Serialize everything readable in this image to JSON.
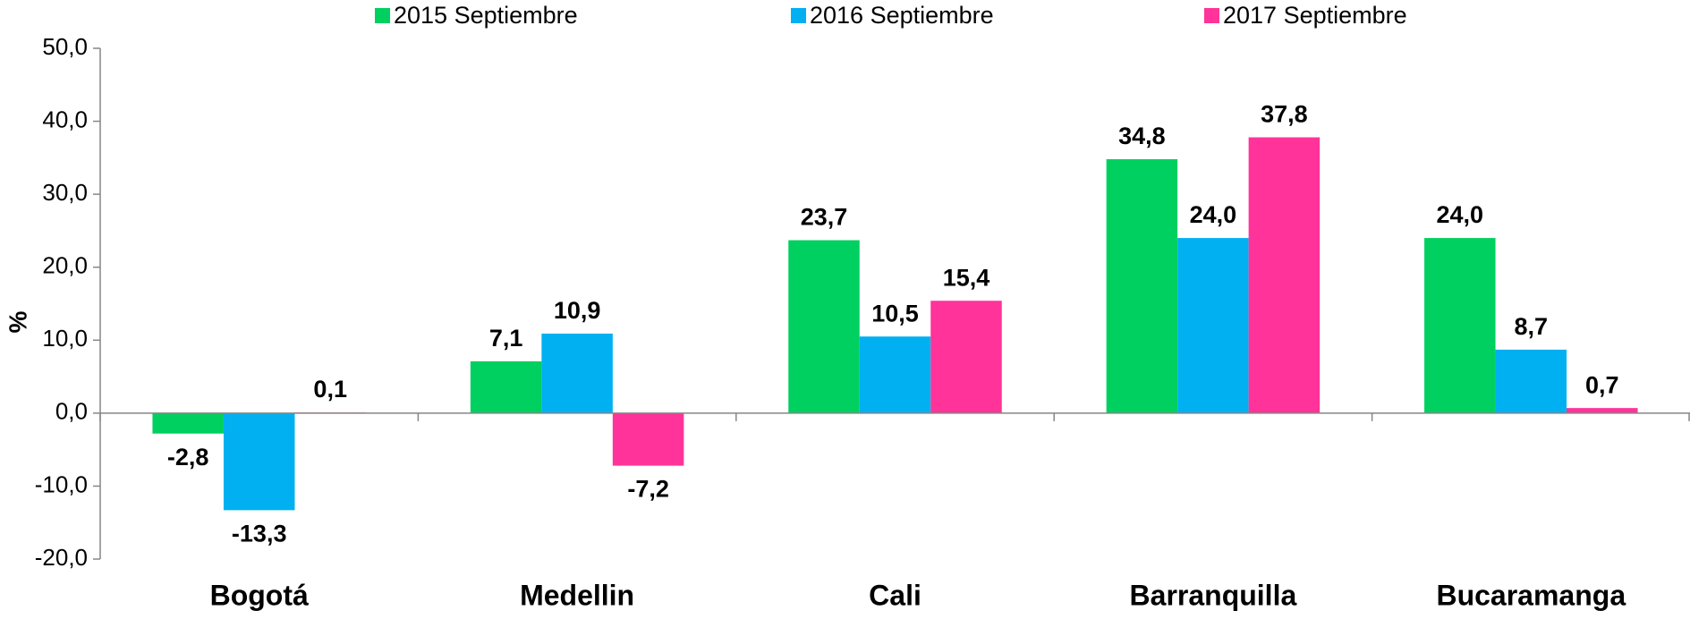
{
  "chart_data": {
    "type": "bar",
    "y_label": "%",
    "categories": [
      "Bogotá",
      "Medellin",
      "Cali",
      "Barranquilla",
      "Bucaramanga"
    ],
    "series": [
      {
        "name": "2015 Septiembre",
        "color": "#00d060",
        "values": [
          -2.8,
          7.1,
          23.7,
          34.8,
          24.0
        ],
        "value_labels": [
          "-2,8",
          "7,1",
          "23,7",
          "34,8",
          "24,0"
        ]
      },
      {
        "name": "2016 Septiembre",
        "color": "#00b0f0",
        "values": [
          -13.3,
          10.9,
          10.5,
          24.0,
          8.7
        ],
        "value_labels": [
          "-13,3",
          "10,9",
          "10,5",
          "24,0",
          "8,7"
        ]
      },
      {
        "name": "2017 Septiembre",
        "color": "#ff3399",
        "values": [
          0.1,
          -7.2,
          15.4,
          37.8,
          0.7
        ],
        "value_labels": [
          "0,1",
          "-7,2",
          "15,4",
          "37,8",
          "0,7"
        ]
      }
    ],
    "ylim": [
      -20,
      50
    ],
    "yticks": [
      {
        "value": -20,
        "label": "-20,0"
      },
      {
        "value": -10,
        "label": "-10,0"
      },
      {
        "value": 0,
        "label": "0,0"
      },
      {
        "value": 10,
        "label": "10,0"
      },
      {
        "value": 20,
        "label": "20,0"
      },
      {
        "value": 30,
        "label": "30,0"
      },
      {
        "value": 40,
        "label": "40,0"
      },
      {
        "value": 50,
        "label": "50,0"
      }
    ],
    "legend": "top"
  }
}
